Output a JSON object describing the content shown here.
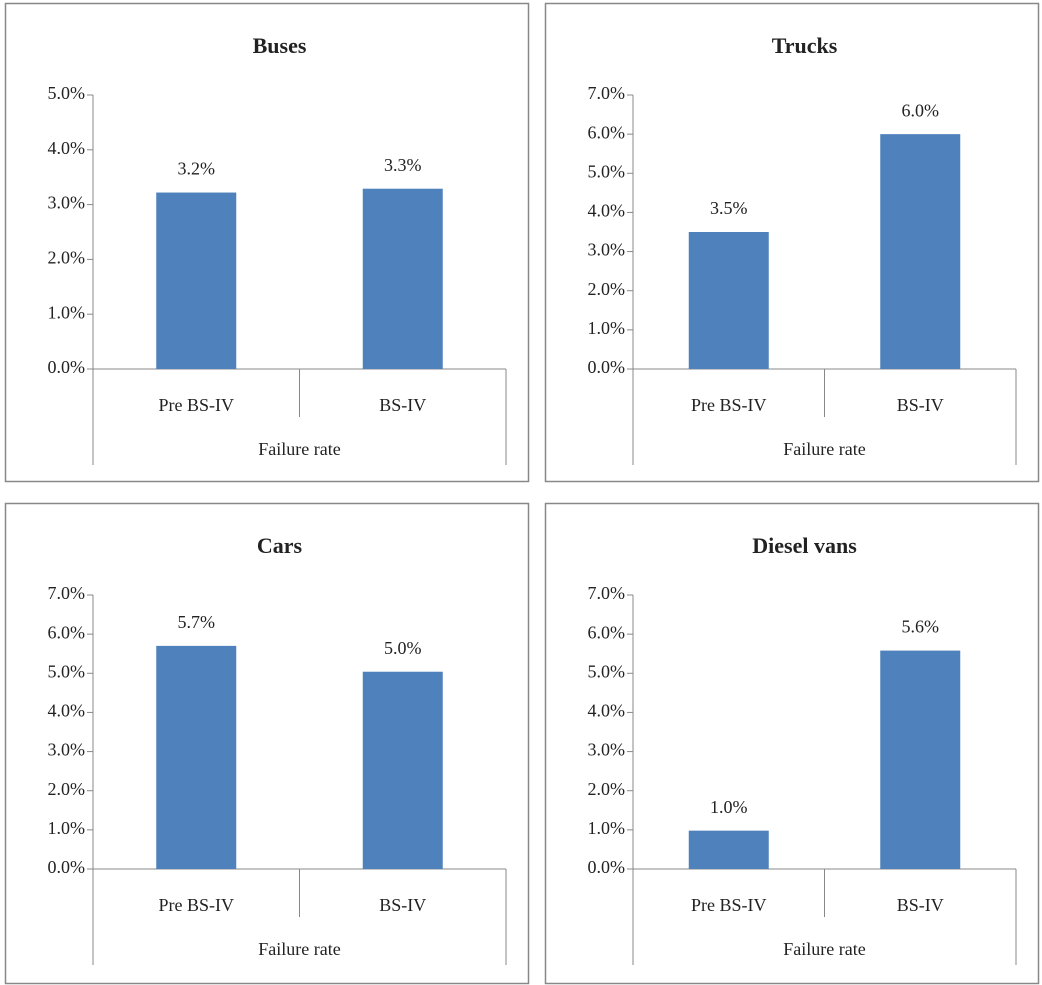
{
  "chart_data": [
    {
      "type": "bar",
      "title": "Buses",
      "categories": [
        "Pre BS-IV",
        "BS-IV"
      ],
      "x_group_label": "Failure rate",
      "values": [
        3.22,
        3.29
      ],
      "value_labels": [
        "3.2%",
        "3.3%"
      ],
      "color": "#4f81bd",
      "ylim": [
        0,
        5
      ],
      "yticks": [
        {
          "value": 0,
          "label": "0.0%"
        },
        {
          "value": 1,
          "label": "1.0%"
        },
        {
          "value": 2,
          "label": "2.0%"
        },
        {
          "value": 3,
          "label": "3.0%"
        },
        {
          "value": 4,
          "label": "4.0%"
        },
        {
          "value": 5,
          "label": "5.0%"
        }
      ]
    },
    {
      "type": "bar",
      "title": "Trucks",
      "categories": [
        "Pre BS-IV",
        "BS-IV"
      ],
      "x_group_label": "Failure rate",
      "values": [
        3.5,
        6.0
      ],
      "value_labels": [
        "3.5%",
        "6.0%"
      ],
      "color": "#4f81bd",
      "ylim": [
        0,
        7
      ],
      "yticks": [
        {
          "value": 0,
          "label": "0.0%"
        },
        {
          "value": 1,
          "label": "1.0%"
        },
        {
          "value": 2,
          "label": "2.0%"
        },
        {
          "value": 3,
          "label": "3.0%"
        },
        {
          "value": 4,
          "label": "4.0%"
        },
        {
          "value": 5,
          "label": "5.0%"
        },
        {
          "value": 6,
          "label": "6.0%"
        },
        {
          "value": 7,
          "label": "7.0%"
        }
      ]
    },
    {
      "type": "bar",
      "title": "Cars",
      "categories": [
        "Pre BS-IV",
        "BS-IV"
      ],
      "x_group_label": "Failure rate",
      "values": [
        5.7,
        5.04
      ],
      "value_labels": [
        "5.7%",
        "5.0%"
      ],
      "color": "#4f81bd",
      "ylim": [
        0,
        7
      ],
      "yticks": [
        {
          "value": 0,
          "label": "0.0%"
        },
        {
          "value": 1,
          "label": "1.0%"
        },
        {
          "value": 2,
          "label": "2.0%"
        },
        {
          "value": 3,
          "label": "3.0%"
        },
        {
          "value": 4,
          "label": "4.0%"
        },
        {
          "value": 5,
          "label": "5.0%"
        },
        {
          "value": 6,
          "label": "6.0%"
        },
        {
          "value": 7,
          "label": "7.0%"
        }
      ]
    },
    {
      "type": "bar",
      "title": "Diesel vans",
      "categories": [
        "Pre BS-IV",
        "BS-IV"
      ],
      "x_group_label": "Failure rate",
      "values": [
        0.98,
        5.58
      ],
      "value_labels": [
        "1.0%",
        "5.6%"
      ],
      "color": "#4f81bd",
      "ylim": [
        0,
        7
      ],
      "yticks": [
        {
          "value": 0,
          "label": "0.0%"
        },
        {
          "value": 1,
          "label": "1.0%"
        },
        {
          "value": 2,
          "label": "2.0%"
        },
        {
          "value": 3,
          "label": "3.0%"
        },
        {
          "value": 4,
          "label": "4.0%"
        },
        {
          "value": 5,
          "label": "5.0%"
        },
        {
          "value": 6,
          "label": "6.0%"
        },
        {
          "value": 7,
          "label": "7.0%"
        }
      ]
    }
  ]
}
